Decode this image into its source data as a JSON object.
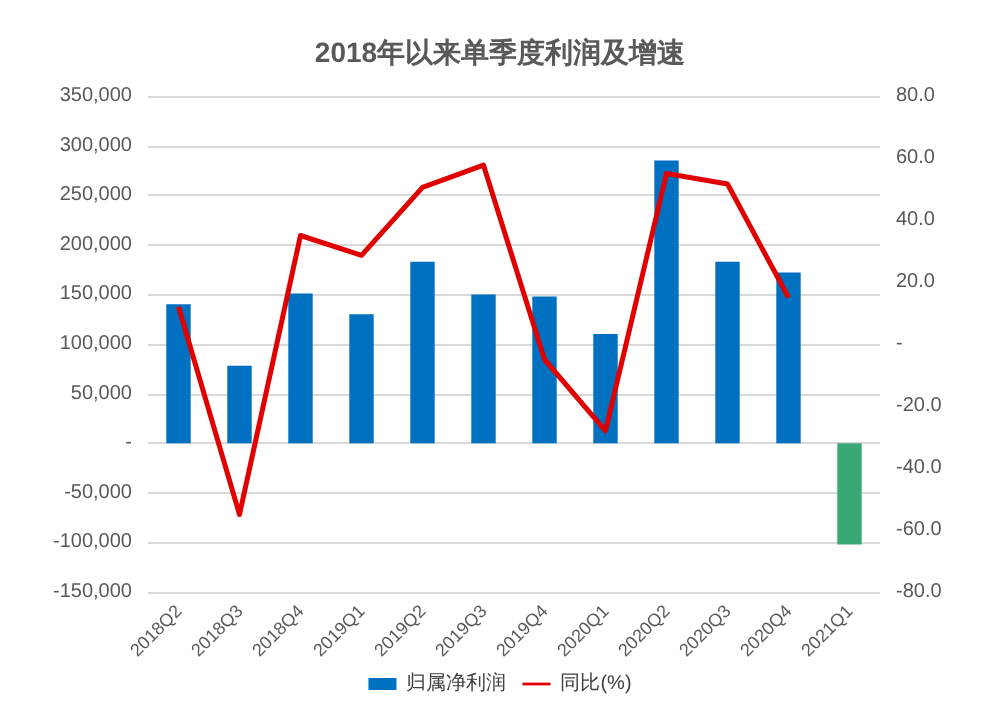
{
  "chart_data": {
    "type": "bar",
    "title": "2018年以来单季度利润及增速",
    "categories": [
      "2018Q2",
      "2018Q3",
      "2018Q4",
      "2019Q1",
      "2019Q2",
      "2019Q3",
      "2019Q4",
      "2020Q1",
      "2020Q2",
      "2020Q3",
      "2020Q4",
      "2021Q1"
    ],
    "series": [
      {
        "name": "归属净利润",
        "color": "#0070c0",
        "colors": [
          "#0070c0",
          "#0070c0",
          "#0070c0",
          "#0070c0",
          "#0070c0",
          "#0070c0",
          "#0070c0",
          "#0070c0",
          "#0070c0",
          "#0070c0",
          "#0070c0",
          "#3aa876"
        ],
        "values": [
          140000,
          78000,
          151000,
          130000,
          183000,
          150000,
          148000,
          110000,
          285000,
          183000,
          172000,
          -102000
        ]
      },
      {
        "name": "同比(%)",
        "type": "line",
        "axis": "y2",
        "color": "#e00000",
        "values": [
          12,
          -55,
          35,
          28.6,
          50.5,
          57.7,
          -5,
          -28,
          55,
          51.6,
          15,
          null
        ]
      }
    ],
    "ylim": [
      -150000,
      350000
    ],
    "yticks": [
      {
        "value": -150000,
        "label": "-150,000"
      },
      {
        "value": -100000,
        "label": "-100,000"
      },
      {
        "value": -50000,
        "label": "-50,000"
      },
      {
        "value": 0,
        "label": "-"
      },
      {
        "value": 50000,
        "label": "50,000"
      },
      {
        "value": 100000,
        "label": "100,000"
      },
      {
        "value": 150000,
        "label": "150,000"
      },
      {
        "value": 200000,
        "label": "200,000"
      },
      {
        "value": 250000,
        "label": "250,000"
      },
      {
        "value": 300000,
        "label": "300,000"
      },
      {
        "value": 350000,
        "label": "350,000"
      }
    ],
    "y2lim": [
      -80,
      80
    ],
    "y2ticks": [
      {
        "value": -80,
        "label": "-80.0"
      },
      {
        "value": -60,
        "label": "-60.0"
      },
      {
        "value": -40,
        "label": "-40.0"
      },
      {
        "value": -20,
        "label": "-20.0"
      },
      {
        "value": 0,
        "label": "-"
      },
      {
        "value": 20,
        "label": "20.0"
      },
      {
        "value": 40,
        "label": "40.0"
      },
      {
        "value": 60,
        "label": "60.0"
      },
      {
        "value": 80,
        "label": "80.0"
      }
    ],
    "grid": "y",
    "legend": "bottom",
    "marker": "none",
    "line_style": "solid"
  }
}
